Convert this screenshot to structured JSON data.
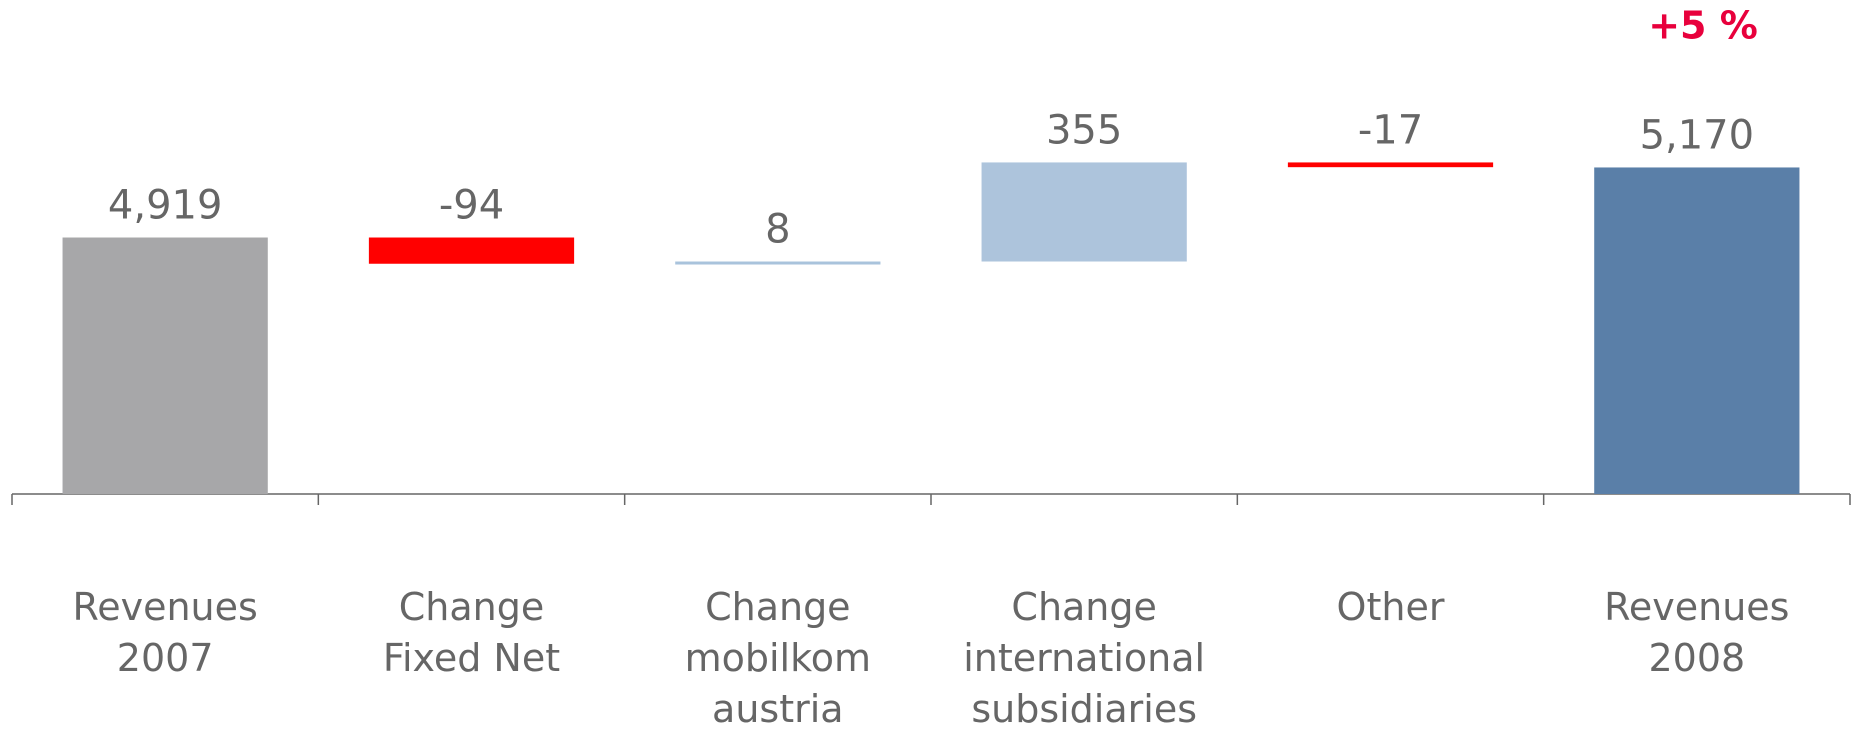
{
  "chart_data": {
    "type": "waterfall",
    "categories": [
      "Revenues\n2007",
      "Change\nFixed Net",
      "Change\nmobilkom\naustria",
      "Change\ninternational\nsubsidiaries",
      "Other",
      "Revenues\n2008"
    ],
    "values": [
      4919,
      -94,
      8,
      355,
      -17,
      5170
    ],
    "value_labels": [
      "4,919",
      "-94",
      "8",
      "355",
      "-17",
      "5,170"
    ],
    "is_total": [
      true,
      false,
      false,
      false,
      false,
      true
    ],
    "colors": [
      "#a7a7a9",
      "#ff0000",
      "#a9c3dc",
      "#adc4dc",
      "#ff0000",
      "#5a7fa8"
    ],
    "annotation": "+5 %",
    "ylim": [
      4000,
      5770
    ]
  }
}
